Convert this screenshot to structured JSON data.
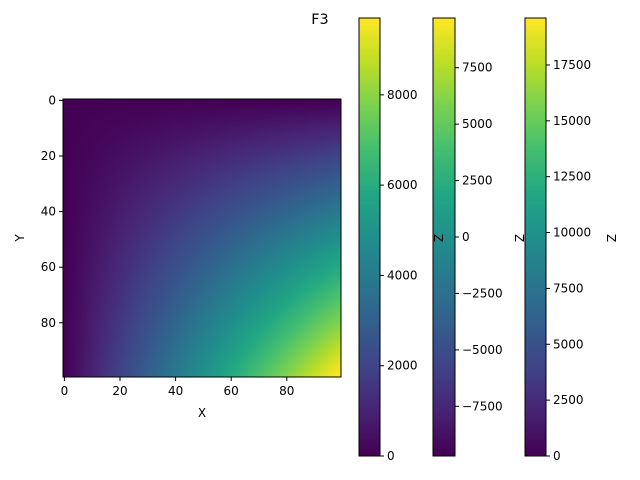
{
  "title": "F3",
  "chart_data": {
    "type": "heatmap",
    "title": "F3",
    "colormap": "viridis",
    "xlabel": "X",
    "ylabel": "Y",
    "x_range": [
      0,
      99
    ],
    "y_range": [
      0,
      99
    ],
    "y_inverted": true,
    "z_range": [
      0,
      9702
    ],
    "z_description": "z = x * y * (approx), increasing toward bottom-right",
    "x_ticks": [
      "0",
      "20",
      "40",
      "60",
      "80"
    ],
    "y_ticks": [
      "0",
      "20",
      "40",
      "60",
      "80"
    ],
    "colorbars": [
      {
        "label": "",
        "range": [
          0,
          9702
        ],
        "ticks": [
          "0",
          "2000",
          "4000",
          "6000",
          "8000"
        ]
      },
      {
        "label": "Z",
        "range": [
          -9702,
          9702
        ],
        "ticks": [
          "−7500",
          "−5000",
          "−2500",
          "0",
          "2500",
          "5000",
          "7500"
        ]
      },
      {
        "label": "Z",
        "range": [
          0,
          19602
        ],
        "ticks": [
          "0",
          "2500",
          "5000",
          "7500",
          "10000",
          "12500",
          "15000",
          "17500"
        ]
      }
    ],
    "extra_label": "Z"
  }
}
